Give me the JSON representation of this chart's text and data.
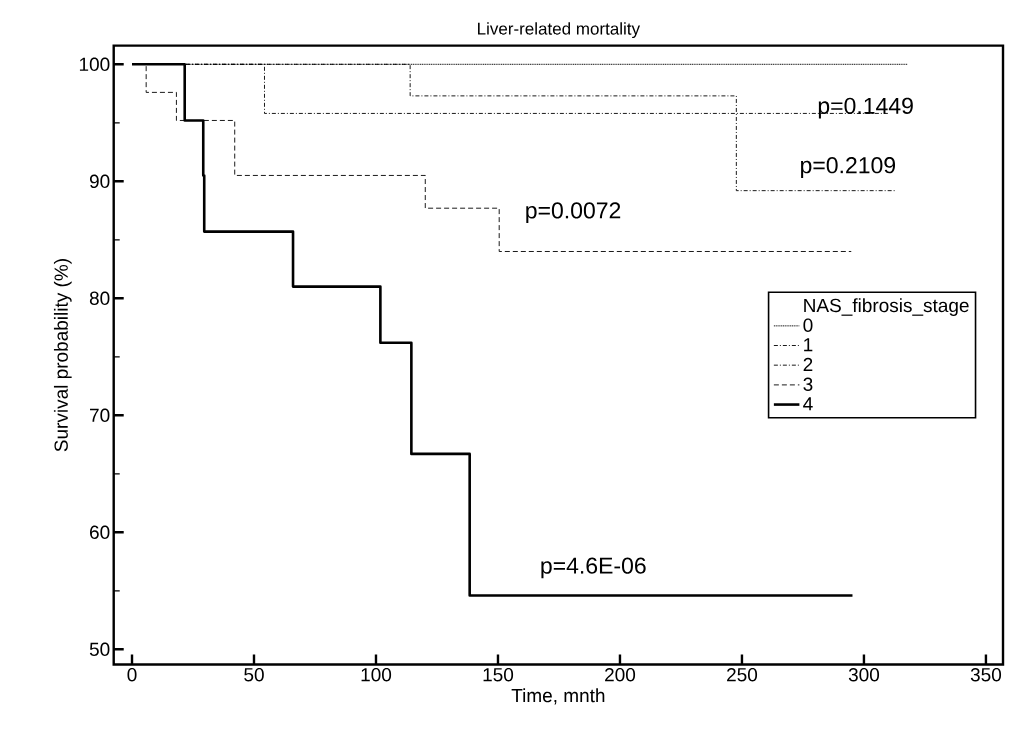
{
  "chart_data": {
    "type": "step",
    "title": "Liver-related mortality",
    "xlabel": "Time, mnth",
    "ylabel": "Survival probability (%)",
    "legend_title": "NAS_fibrosis_stage",
    "legend": "right",
    "xlim": [
      -7.5,
      357
    ],
    "ylim": [
      48.7,
      101.6
    ],
    "xticks": [
      0,
      50,
      100,
      150,
      200,
      250,
      300,
      350
    ],
    "yticks": [
      50,
      60,
      70,
      80,
      90,
      100
    ],
    "color": "#000000",
    "series": [
      {
        "name": "0",
        "line_style": "dotted",
        "x": [
          0,
          317.8
        ],
        "values": [
          100,
          100
        ]
      },
      {
        "name": "1",
        "line_style": "dashdot",
        "x": [
          0,
          54.3,
          310
        ],
        "values": [
          100,
          95.8,
          95.8
        ]
      },
      {
        "name": "2",
        "line_style": "dashdot",
        "x": [
          0,
          114,
          247.7,
          312.6
        ],
        "values": [
          100,
          97.3,
          89.2,
          89.2
        ]
      },
      {
        "name": "3",
        "line_style": "dashed",
        "x": [
          0,
          5.8,
          18.2,
          42.1,
          120.2,
          150.5,
          294.8
        ],
        "values": [
          100,
          97.6,
          95.2,
          90.5,
          87.7,
          84.0,
          84.0
        ]
      },
      {
        "name": "4",
        "line_style": "solid",
        "x": [
          0,
          21.6,
          29.2,
          29.6,
          66.0,
          101.8,
          114.5,
          138.4,
          295.3
        ],
        "values": [
          100,
          95.2,
          90.5,
          85.7,
          81.0,
          76.2,
          66.7,
          54.6,
          54.6
        ]
      }
    ],
    "annotations": [
      "p=0.1449",
      "p=0.2109",
      "p=0.0072",
      "p=4.6E-06"
    ]
  }
}
